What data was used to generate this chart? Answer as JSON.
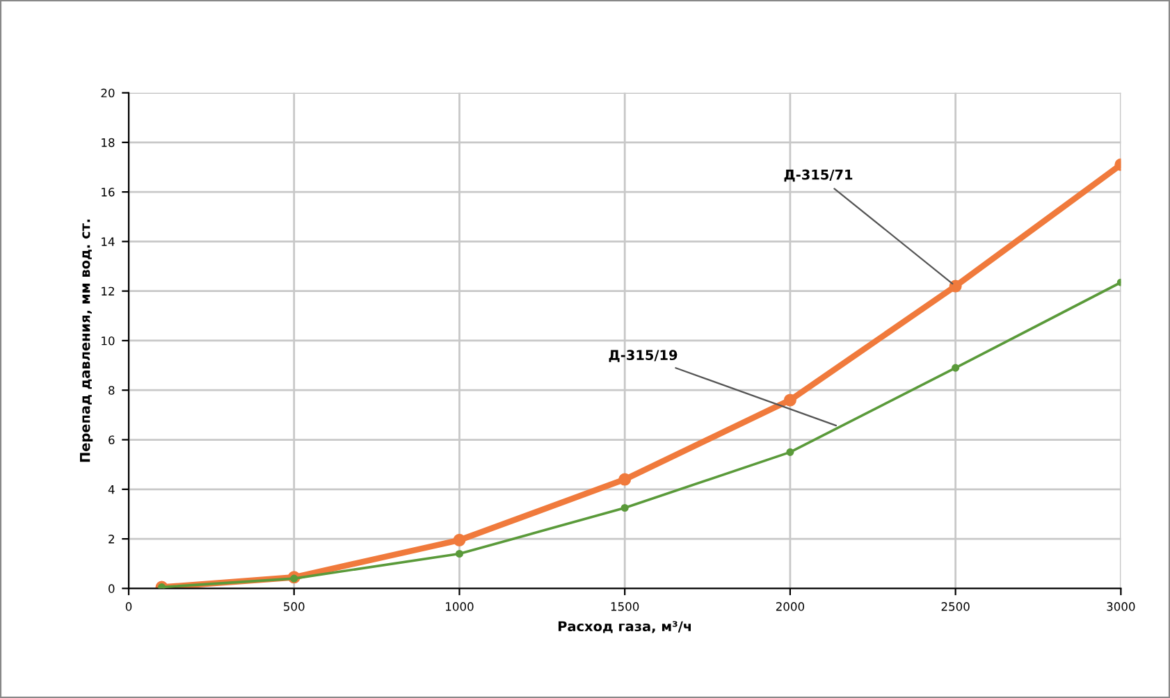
{
  "chart_data": {
    "type": "line",
    "xlabel": "Расход газа, м³/ч",
    "ylabel": "Перепад давления, мм вод. ст.",
    "xlim": [
      0,
      3000
    ],
    "xticks": [
      0,
      500,
      1000,
      1500,
      2000,
      2500,
      3000
    ],
    "ylim": [
      0,
      20
    ],
    "yticks": [
      0,
      2,
      4,
      6,
      8,
      10,
      12,
      14,
      16,
      18,
      20
    ],
    "grid": true,
    "marker": "circle",
    "line_style": "solid",
    "series": [
      {
        "color": "#f07a3c",
        "x": [
          100,
          500,
          1000,
          1500,
          2000,
          2500,
          3000
        ],
        "values": [
          0.05,
          0.45,
          1.95,
          4.4,
          7.6,
          12.2,
          17.1
        ]
      },
      {
        "color": "#5a9a3a",
        "x": [
          100,
          500,
          1000,
          1500,
          2000,
          2500,
          3000
        ],
        "values": [
          0.05,
          0.4,
          1.4,
          3.25,
          5.5,
          8.9,
          12.35
        ]
      }
    ],
    "annotations": [
      {
        "text": "Д-315/71",
        "x": 2500,
        "y": 12.2
      },
      {
        "text": "Д-315/19",
        "x": 2150,
        "y": 6.52
      }
    ]
  }
}
